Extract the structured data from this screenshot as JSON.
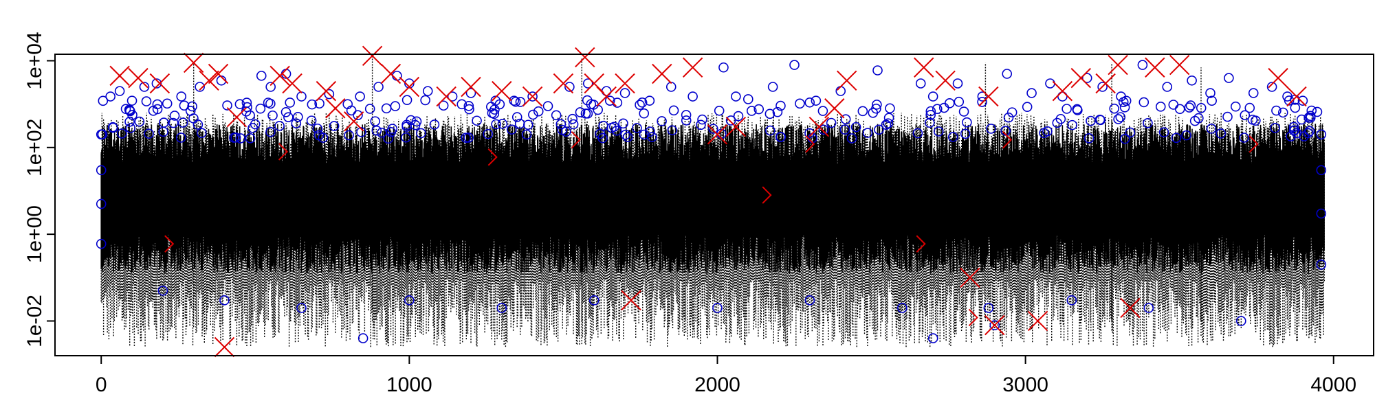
{
  "chart_data": {
    "type": "scatter",
    "title": "",
    "xlabel": "",
    "ylabel": "",
    "xlim": [
      -150,
      4130
    ],
    "ylim_log10": [
      -2.8,
      4.15
    ],
    "y_scale": "log",
    "grid": false,
    "legend": "none",
    "x_ticks": [
      {
        "value": 0,
        "label": "0"
      },
      {
        "value": 1000,
        "label": "1000"
      },
      {
        "value": 2000,
        "label": "2000"
      },
      {
        "value": 3000,
        "label": "3000"
      },
      {
        "value": 4000,
        "label": "4000"
      }
    ],
    "y_ticks": [
      {
        "value": 0.01,
        "label": "1e-02"
      },
      {
        "value": 1,
        "label": "1e+00"
      },
      {
        "value": 100,
        "label": "1e+02"
      },
      {
        "value": 10000,
        "label": "1e+04"
      }
    ],
    "series": [
      {
        "kind": "dotted-segments",
        "color": "#000000",
        "x_range": [
          0,
          3970
        ],
        "typical_range": [
          0.003,
          300
        ],
        "peaks": [
          [
            300,
            9000
          ],
          [
            880,
            13000
          ],
          [
            1560,
            12000
          ],
          [
            2870,
            9000
          ],
          [
            3280,
            9000
          ],
          [
            3570,
            7000
          ]
        ]
      },
      {
        "kind": "solid-segments",
        "color": "#000000",
        "x_range": [
          0,
          3970
        ],
        "typical_range": [
          0.05,
          400
        ]
      },
      {
        "kind": "open-circles",
        "color": "#0000CC",
        "points": [
          [
            0,
            200
          ],
          [
            0,
            30
          ],
          [
            0,
            5
          ],
          [
            0,
            0.6
          ],
          [
            30,
            1500
          ],
          [
            60,
            2000
          ],
          [
            100,
            1200
          ],
          [
            140,
            2500
          ],
          [
            180,
            3000
          ],
          [
            260,
            1500
          ],
          [
            320,
            2500
          ],
          [
            390,
            3500
          ],
          [
            450,
            1000
          ],
          [
            520,
            4500
          ],
          [
            550,
            2500
          ],
          [
            600,
            5000
          ],
          [
            650,
            1500
          ],
          [
            740,
            1700
          ],
          [
            800,
            1000
          ],
          [
            840,
            1500
          ],
          [
            900,
            2500
          ],
          [
            960,
            4500
          ],
          [
            1000,
            3000
          ],
          [
            1060,
            2000
          ],
          [
            1140,
            1500
          ],
          [
            1200,
            1800
          ],
          [
            1280,
            1200
          ],
          [
            1340,
            1200
          ],
          [
            1400,
            1500
          ],
          [
            1450,
            900
          ],
          [
            1520,
            2500
          ],
          [
            1580,
            3000
          ],
          [
            1640,
            2000
          ],
          [
            1700,
            1800
          ],
          [
            1780,
            1200
          ],
          [
            1850,
            2500
          ],
          [
            1920,
            1500
          ],
          [
            2020,
            7000
          ],
          [
            2060,
            1500
          ],
          [
            2100,
            1300
          ],
          [
            2180,
            2500
          ],
          [
            2250,
            8000
          ],
          [
            2320,
            1200
          ],
          [
            2400,
            2000
          ],
          [
            2520,
            6000
          ],
          [
            2560,
            800
          ],
          [
            2660,
            3000
          ],
          [
            2700,
            1500
          ],
          [
            2780,
            3000
          ],
          [
            2860,
            1500
          ],
          [
            2940,
            5000
          ],
          [
            3020,
            1800
          ],
          [
            3080,
            3000
          ],
          [
            3120,
            1500
          ],
          [
            3200,
            4000
          ],
          [
            3250,
            2500
          ],
          [
            3310,
            1500
          ],
          [
            3380,
            8000
          ],
          [
            3460,
            2500
          ],
          [
            3540,
            3500
          ],
          [
            3600,
            1800
          ],
          [
            3660,
            4000
          ],
          [
            3740,
            1800
          ],
          [
            3800,
            2500
          ],
          [
            3850,
            1500
          ],
          [
            3900,
            1200
          ],
          [
            3960,
            200
          ],
          [
            3960,
            30
          ],
          [
            3960,
            3
          ],
          [
            3960,
            0.2
          ],
          [
            200,
            0.05
          ],
          [
            400,
            0.03
          ],
          [
            650,
            0.02
          ],
          [
            1000,
            0.03
          ],
          [
            1300,
            0.02
          ],
          [
            1600,
            0.03
          ],
          [
            2000,
            0.02
          ],
          [
            2300,
            0.03
          ],
          [
            2600,
            0.02
          ],
          [
            2880,
            0.02
          ],
          [
            3150,
            0.03
          ],
          [
            3400,
            0.02
          ],
          [
            3700,
            0.01
          ],
          [
            2700,
            0.004
          ],
          [
            850,
            0.004
          ],
          [
            2900,
            0.008
          ]
        ]
      },
      {
        "kind": "x-marks",
        "color": "#DD0000",
        "points": [
          [
            60,
            4500
          ],
          [
            120,
            4000
          ],
          [
            190,
            3000
          ],
          [
            300,
            9000
          ],
          [
            350,
            3500
          ],
          [
            380,
            5000
          ],
          [
            440,
            500
          ],
          [
            580,
            4500
          ],
          [
            620,
            3000
          ],
          [
            730,
            2000
          ],
          [
            760,
            800
          ],
          [
            820,
            400
          ],
          [
            880,
            13000
          ],
          [
            940,
            5000
          ],
          [
            1000,
            2500
          ],
          [
            1120,
            1500
          ],
          [
            1200,
            2500
          ],
          [
            1300,
            2000
          ],
          [
            1400,
            1500
          ],
          [
            1500,
            3000
          ],
          [
            1570,
            12000
          ],
          [
            1600,
            3000
          ],
          [
            1640,
            1500
          ],
          [
            1700,
            3000
          ],
          [
            1720,
            0.03
          ],
          [
            1820,
            5000
          ],
          [
            1920,
            7000
          ],
          [
            2000,
            200
          ],
          [
            2060,
            300
          ],
          [
            2330,
            300
          ],
          [
            2380,
            800
          ],
          [
            2420,
            3500
          ],
          [
            2670,
            7000
          ],
          [
            2740,
            3500
          ],
          [
            2820,
            0.1
          ],
          [
            2880,
            1500
          ],
          [
            2900,
            0.008
          ],
          [
            3040,
            0.01
          ],
          [
            3120,
            2000
          ],
          [
            3180,
            4000
          ],
          [
            3260,
            3000
          ],
          [
            3300,
            8000
          ],
          [
            3340,
            0.02
          ],
          [
            3420,
            7000
          ],
          [
            3500,
            8000
          ],
          [
            3820,
            4000
          ],
          [
            3880,
            1500
          ],
          [
            400,
            0.0025
          ]
        ]
      },
      {
        "kind": "arrow-marks",
        "color": "#DD0000",
        "points": [
          [
            220,
            0.6
          ],
          [
            590,
            80
          ],
          [
            1270,
            60
          ],
          [
            1540,
            150
          ],
          [
            2160,
            8
          ],
          [
            2660,
            0.6
          ],
          [
            2300,
            120
          ],
          [
            2940,
            150
          ],
          [
            3740,
            120
          ],
          [
            2830,
            0.012
          ]
        ]
      }
    ]
  }
}
